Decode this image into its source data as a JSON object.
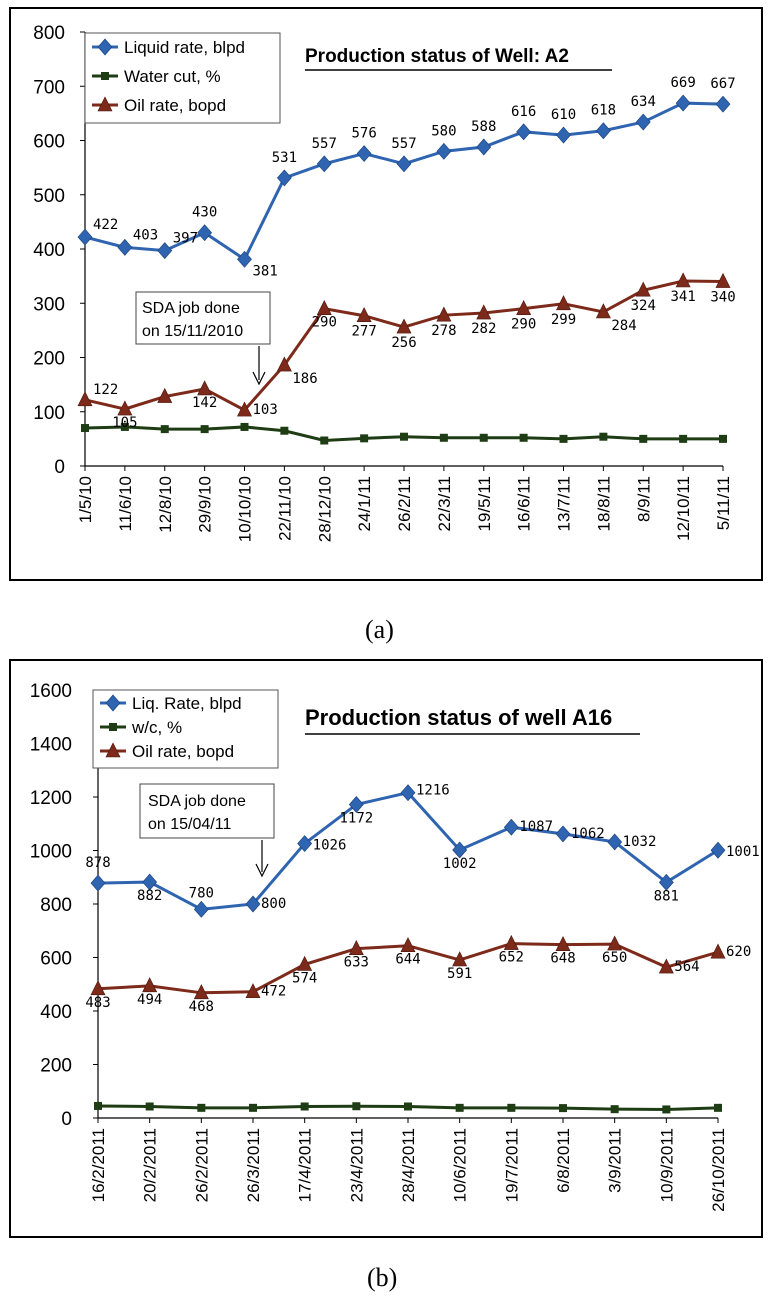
{
  "chart_data": [
    {
      "type": "line",
      "title": "Production status of Well: A2",
      "caption": "(a)",
      "categories": [
        "1/5/10",
        "11/6/10",
        "12/8/10",
        "29/9/10",
        "10/10/10",
        "22/11/10",
        "28/12/10",
        "24/1/11",
        "26/2/11",
        "22/3/11",
        "19/5/11",
        "16/6/11",
        "13/7/11",
        "18/8/11",
        "8/9/11",
        "12/10/11",
        "5/11/11"
      ],
      "ylim": [
        0,
        800
      ],
      "yticks": [
        0,
        100,
        200,
        300,
        400,
        500,
        600,
        700,
        800
      ],
      "series": [
        {
          "name": "Liquid rate, blpd",
          "color": "#2e64b0",
          "marker": "diamond",
          "values": [
            422,
            403,
            397,
            430,
            381,
            531,
            557,
            576,
            557,
            580,
            588,
            616,
            610,
            618,
            634,
            669,
            667
          ],
          "labels": true
        },
        {
          "name": "Water cut, %",
          "color": "#1f3d14",
          "marker": "square",
          "values": [
            70,
            72,
            68,
            68,
            72,
            65,
            47,
            51,
            54,
            52,
            52,
            52,
            50,
            54,
            50,
            50,
            50
          ],
          "labels": false
        },
        {
          "name": "Oil rate, bopd",
          "color": "#7e2a1b",
          "marker": "triangle",
          "values": [
            122,
            105,
            128,
            142,
            103,
            186,
            290,
            277,
            256,
            278,
            282,
            290,
            299,
            284,
            324,
            341,
            340
          ],
          "labels": true,
          "shown_labels": [
            "122",
            "105",
            "",
            "142",
            "103",
            "186",
            "290",
            "277",
            "256",
            "278",
            "282",
            "290",
            "299",
            "284",
            "324",
            "341",
            "340"
          ]
        }
      ],
      "annotation": {
        "lines": [
          "SDA job done",
          "on 15/11/2010"
        ]
      }
    },
    {
      "type": "line",
      "title": "Production status of well A16",
      "caption": "(b)",
      "categories": [
        "16/2/2011",
        "20/2/2011",
        "26/2/2011",
        "26/3/2011",
        "17/4/2011",
        "23/4/2011",
        "28/4/2011",
        "10/6/2011",
        "19/7/2011",
        "6/8/2011",
        "3/9/2011",
        "10/9/2011",
        "26/10/2011"
      ],
      "ylim": [
        0,
        1600
      ],
      "yticks": [
        0,
        200,
        400,
        600,
        800,
        1000,
        1200,
        1400,
        1600
      ],
      "series": [
        {
          "name": "Liq. Rate, blpd",
          "color": "#2e64b0",
          "marker": "diamond",
          "values": [
            878,
            882,
            780,
            800,
            1026,
            1172,
            1216,
            1002,
            1087,
            1062,
            1032,
            881,
            1001
          ],
          "labels": true
        },
        {
          "name": "w/c, %",
          "color": "#1f3d14",
          "marker": "square",
          "values": [
            45,
            43,
            38,
            38,
            43,
            44,
            43,
            38,
            38,
            37,
            33,
            32,
            38
          ],
          "labels": false
        },
        {
          "name": "Oil rate, bopd",
          "color": "#7e2a1b",
          "marker": "triangle",
          "values": [
            483,
            494,
            468,
            472,
            574,
            633,
            644,
            591,
            652,
            648,
            650,
            564,
            620
          ],
          "labels": true
        }
      ],
      "annotation": {
        "lines": [
          "SDA job done",
          "on 15/04/11"
        ]
      }
    }
  ]
}
